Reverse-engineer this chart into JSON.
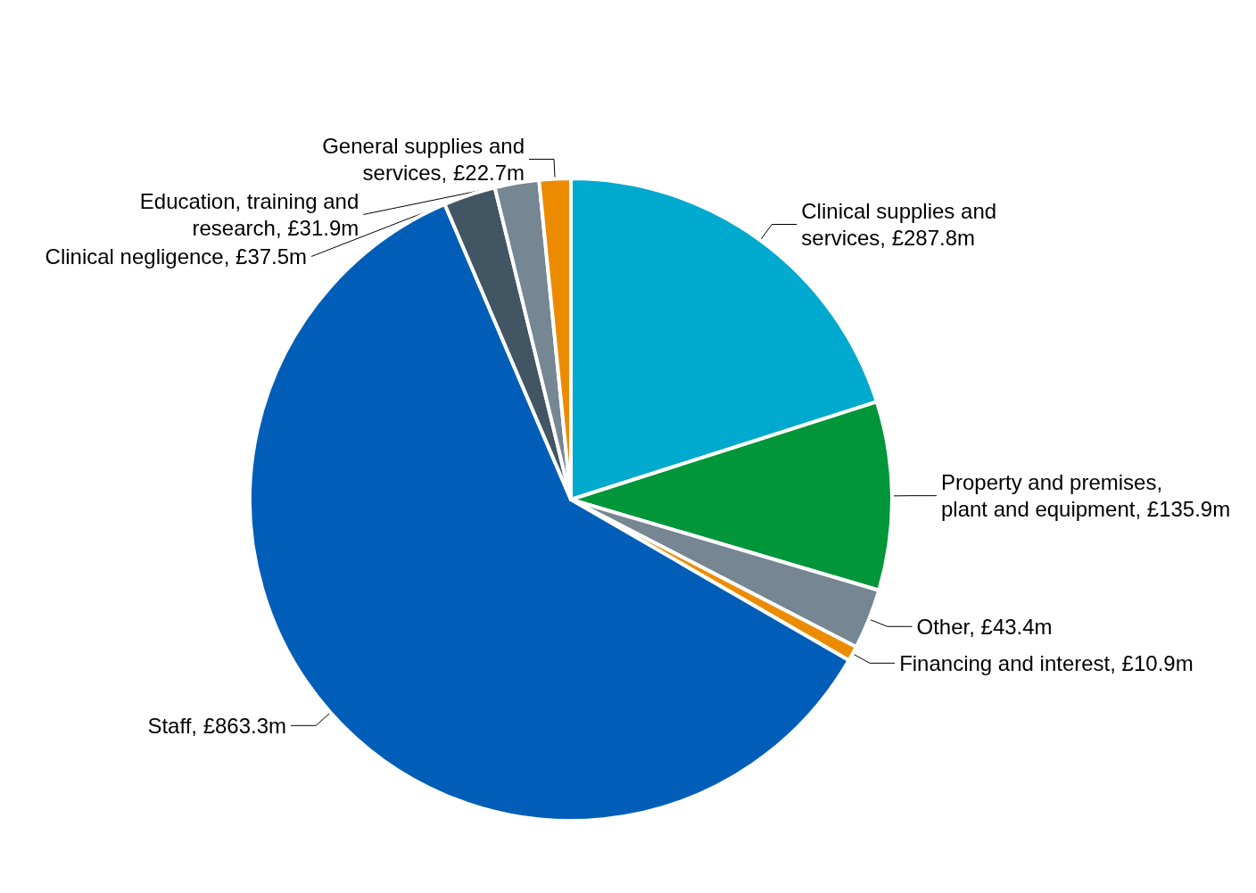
{
  "chart_data": {
    "type": "pie",
    "categories": [
      "Clinical supplies and services",
      "Property and premises, plant and equipment",
      "Other",
      "Financing and interest",
      "Staff",
      "Clinical negligence",
      "Education, training and research",
      "General supplies and services"
    ],
    "values": [
      287.8,
      135.9,
      43.4,
      10.9,
      863.3,
      37.5,
      31.9,
      22.7
    ],
    "value_labels": [
      "£287.8m",
      "£135.9m",
      "£43.4m",
      "£10.9m",
      "£863.3m",
      "£37.5m",
      "£31.9m",
      "£22.7m"
    ],
    "colors": [
      "#00a9ce",
      "#009639",
      "#768692",
      "#ed8b00",
      "#005eb8",
      "#425563",
      "#768692",
      "#ed8b00"
    ]
  }
}
